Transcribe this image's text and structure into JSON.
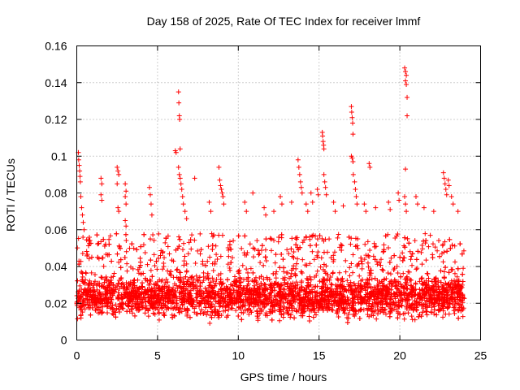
{
  "chart_data": {
    "type": "scatter",
    "title": "Day 158 of 2025, Rate Of TEC Index for receiver lmmf",
    "xlabel": "GPS time / hours",
    "ylabel": "ROTI / TECUs",
    "xlim": [
      0,
      25
    ],
    "ylim": [
      0,
      0.16
    ],
    "xticks": [
      0,
      5,
      10,
      15,
      20,
      25
    ],
    "xtick_labels": [
      "0",
      "5",
      "10",
      "15",
      "20",
      "25"
    ],
    "yticks": [
      0,
      0.02,
      0.04,
      0.06,
      0.08,
      0.1,
      0.12,
      0.14,
      0.16
    ],
    "ytick_labels": [
      "0",
      "0.02",
      "0.04",
      "0.06",
      "0.08",
      "0.1",
      "0.12",
      "0.14",
      "0.16"
    ],
    "grid": true,
    "marker": "+",
    "series": [
      {
        "name": "ROTI",
        "color": "#ff0000",
        "baseline": {
          "x_start": 0.0,
          "x_end": 24.0,
          "typical_low": 0.008,
          "typical_high": 0.04,
          "median": 0.022
        },
        "points": [
          [
            0.1,
            0.102
          ],
          [
            0.12,
            0.098
          ],
          [
            0.15,
            0.095
          ],
          [
            0.18,
            0.092
          ],
          [
            0.2,
            0.089
          ],
          [
            0.22,
            0.086
          ],
          [
            0.25,
            0.078
          ],
          [
            0.3,
            0.072
          ],
          [
            0.35,
            0.068
          ],
          [
            0.4,
            0.064
          ],
          [
            0.45,
            0.06
          ],
          [
            1.5,
            0.088
          ],
          [
            1.55,
            0.085
          ],
          [
            1.5,
            0.079
          ],
          [
            1.55,
            0.076
          ],
          [
            2.5,
            0.094
          ],
          [
            2.55,
            0.092
          ],
          [
            2.6,
            0.09
          ],
          [
            2.5,
            0.085
          ],
          [
            2.55,
            0.072
          ],
          [
            2.6,
            0.07
          ],
          [
            3.0,
            0.085
          ],
          [
            3.05,
            0.081
          ],
          [
            3.0,
            0.078
          ],
          [
            3.05,
            0.074
          ],
          [
            3.0,
            0.065
          ],
          [
            3.05,
            0.062
          ],
          [
            4.5,
            0.083
          ],
          [
            4.55,
            0.079
          ],
          [
            4.6,
            0.074
          ],
          [
            4.65,
            0.068
          ],
          [
            6.1,
            0.103
          ],
          [
            6.15,
            0.102
          ],
          [
            6.3,
            0.135
          ],
          [
            6.32,
            0.129
          ],
          [
            6.35,
            0.122
          ],
          [
            6.37,
            0.12
          ],
          [
            6.4,
            0.104
          ],
          [
            6.3,
            0.094
          ],
          [
            6.35,
            0.09
          ],
          [
            6.4,
            0.088
          ],
          [
            6.45,
            0.085
          ],
          [
            6.5,
            0.082
          ],
          [
            6.55,
            0.078
          ],
          [
            6.6,
            0.074
          ],
          [
            6.7,
            0.07
          ],
          [
            6.8,
            0.066
          ],
          [
            7.3,
            0.088
          ],
          [
            8.2,
            0.075
          ],
          [
            8.3,
            0.07
          ],
          [
            8.8,
            0.094
          ],
          [
            8.85,
            0.087
          ],
          [
            8.9,
            0.084
          ],
          [
            8.95,
            0.082
          ],
          [
            9.0,
            0.08
          ],
          [
            9.05,
            0.078
          ],
          [
            9.1,
            0.074
          ],
          [
            10.4,
            0.075
          ],
          [
            10.5,
            0.07
          ],
          [
            10.9,
            0.08
          ],
          [
            11.6,
            0.072
          ],
          [
            11.7,
            0.068
          ],
          [
            12.2,
            0.07
          ],
          [
            12.6,
            0.078
          ],
          [
            12.7,
            0.074
          ],
          [
            13.3,
            0.075
          ],
          [
            13.7,
            0.098
          ],
          [
            13.75,
            0.094
          ],
          [
            13.8,
            0.09
          ],
          [
            13.85,
            0.086
          ],
          [
            13.9,
            0.083
          ],
          [
            13.95,
            0.08
          ],
          [
            14.2,
            0.074
          ],
          [
            14.3,
            0.07
          ],
          [
            14.5,
            0.08
          ],
          [
            14.6,
            0.075
          ],
          [
            14.9,
            0.082
          ],
          [
            14.95,
            0.079
          ],
          [
            15.2,
            0.113
          ],
          [
            15.22,
            0.111
          ],
          [
            15.25,
            0.108
          ],
          [
            15.28,
            0.106
          ],
          [
            15.3,
            0.104
          ],
          [
            15.3,
            0.09
          ],
          [
            15.35,
            0.086
          ],
          [
            15.4,
            0.083
          ],
          [
            15.45,
            0.079
          ],
          [
            15.9,
            0.075
          ],
          [
            16.0,
            0.07
          ],
          [
            16.5,
            0.073
          ],
          [
            17.0,
            0.127
          ],
          [
            17.02,
            0.124
          ],
          [
            17.05,
            0.121
          ],
          [
            17.08,
            0.118
          ],
          [
            17.1,
            0.112
          ],
          [
            17.0,
            0.1
          ],
          [
            17.05,
            0.099
          ],
          [
            17.1,
            0.097
          ],
          [
            17.12,
            0.09
          ],
          [
            17.2,
            0.086
          ],
          [
            17.25,
            0.082
          ],
          [
            17.3,
            0.078
          ],
          [
            17.35,
            0.074
          ],
          [
            17.8,
            0.074
          ],
          [
            17.9,
            0.07
          ],
          [
            18.1,
            0.096
          ],
          [
            18.15,
            0.094
          ],
          [
            18.5,
            0.072
          ],
          [
            19.3,
            0.075
          ],
          [
            19.4,
            0.071
          ],
          [
            19.9,
            0.08
          ],
          [
            19.95,
            0.076
          ],
          [
            20.3,
            0.148
          ],
          [
            20.35,
            0.146
          ],
          [
            20.4,
            0.144
          ],
          [
            20.35,
            0.141
          ],
          [
            20.4,
            0.139
          ],
          [
            20.45,
            0.132
          ],
          [
            20.45,
            0.122
          ],
          [
            20.35,
            0.093
          ],
          [
            20.3,
            0.078
          ],
          [
            20.35,
            0.074
          ],
          [
            20.4,
            0.07
          ],
          [
            21.0,
            0.078
          ],
          [
            21.1,
            0.074
          ],
          [
            21.5,
            0.072
          ],
          [
            22.1,
            0.07
          ],
          [
            22.7,
            0.091
          ],
          [
            22.75,
            0.088
          ],
          [
            22.8,
            0.085
          ],
          [
            22.85,
            0.082
          ],
          [
            22.9,
            0.079
          ],
          [
            23.0,
            0.087
          ],
          [
            23.05,
            0.084
          ],
          [
            23.2,
            0.078
          ],
          [
            23.3,
            0.074
          ],
          [
            23.6,
            0.07
          ]
        ]
      }
    ]
  }
}
